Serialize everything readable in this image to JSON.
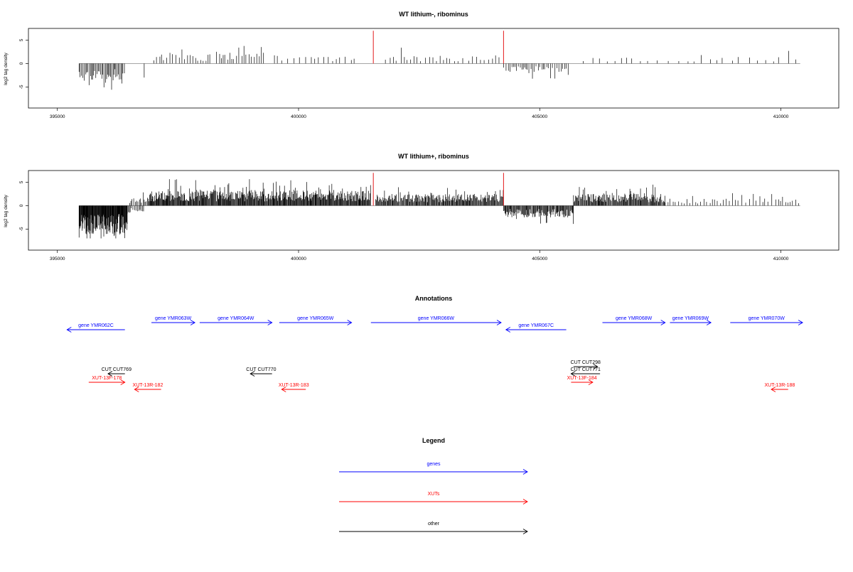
{
  "chart_data": [
    {
      "type": "bar",
      "id": "lithium-minus",
      "title": "WT lithium-, ribominus",
      "ylabel": "log2 tag density",
      "xlim": [
        394400,
        411200
      ],
      "ylim": [
        -9.5,
        7.5
      ],
      "xticks": [
        "395000",
        "400000",
        "405000",
        "410000"
      ],
      "yticks": [
        "5",
        "0",
        "-5"
      ],
      "grid": false,
      "highlight_color": "#e41a1c",
      "highlight_positions": [
        401550,
        404250
      ],
      "highlight_height": 7,
      "segments": [
        {
          "start": 395450,
          "end": 396400,
          "sign": -1,
          "base": 3.0,
          "amp": 2.8,
          "step": 25
        },
        {
          "start": 396800,
          "end": 396800,
          "sign": -1,
          "base": 3.0,
          "amp": 0,
          "step": 1
        },
        {
          "start": 397000,
          "end": 398200,
          "sign": 1,
          "base": 1.6,
          "amp": 1.6,
          "step": 55
        },
        {
          "start": 398300,
          "end": 399300,
          "sign": 1,
          "base": 2.0,
          "amp": 2.5,
          "step": 50
        },
        {
          "start": 399500,
          "end": 401200,
          "sign": 1,
          "base": 1.4,
          "amp": 1.4,
          "step": 95
        },
        {
          "start": 401800,
          "end": 404200,
          "sign": 1,
          "base": 1.4,
          "amp": 2.0,
          "step": 90
        },
        {
          "start": 404250,
          "end": 405600,
          "sign": -1,
          "base": 1.5,
          "amp": 1.7,
          "step": 38
        },
        {
          "start": 405900,
          "end": 410400,
          "sign": 1,
          "base": 1.2,
          "amp": 1.6,
          "step": 170
        }
      ]
    },
    {
      "type": "bar",
      "id": "lithium-plus",
      "title": "WT lithium+, ribominus",
      "ylabel": "log2 tag density",
      "xlim": [
        394400,
        411200
      ],
      "ylim": [
        -9.5,
        7.5
      ],
      "xticks": [
        "395000",
        "400000",
        "405000",
        "410000"
      ],
      "yticks": [
        "5",
        "0",
        "-5"
      ],
      "grid": false,
      "highlight_color": "#e41a1c",
      "highlight_positions": [
        401550,
        404250
      ],
      "highlight_height": 7,
      "segments": [
        {
          "start": 395450,
          "end": 396450,
          "sign": -1,
          "base": 5.0,
          "amp": 3.5,
          "step": 8
        },
        {
          "start": 396450,
          "end": 396800,
          "sign": -1,
          "base": 1.2,
          "amp": 1.0,
          "step": 25
        },
        {
          "start": 396500,
          "end": 396900,
          "sign": 1,
          "base": 1.5,
          "amp": 1.3,
          "step": 30
        },
        {
          "start": 396900,
          "end": 401500,
          "sign": 1,
          "base": 2.6,
          "amp": 3.0,
          "step": 12
        },
        {
          "start": 401600,
          "end": 404250,
          "sign": 1,
          "base": 2.0,
          "amp": 2.4,
          "step": 14
        },
        {
          "start": 404250,
          "end": 405700,
          "sign": -1,
          "base": 2.0,
          "amp": 1.8,
          "step": 14
        },
        {
          "start": 405700,
          "end": 407600,
          "sign": 1,
          "base": 2.0,
          "amp": 2.0,
          "step": 14
        },
        {
          "start": 407600,
          "end": 410400,
          "sign": 1,
          "base": 1.2,
          "amp": 1.6,
          "step": 60
        }
      ]
    }
  ],
  "annotations": {
    "title": "Annotations",
    "features": [
      {
        "label": "gene YMR062C",
        "color": "#0000ff",
        "dir": "left",
        "row": 1,
        "start": 395200,
        "end": 396400
      },
      {
        "label": "gene YMR063W",
        "color": "#0000ff",
        "dir": "right",
        "row": 0,
        "start": 396950,
        "end": 397850
      },
      {
        "label": "gene YMR064W",
        "color": "#0000ff",
        "dir": "right",
        "row": 0,
        "start": 397950,
        "end": 399450
      },
      {
        "label": "gene YMR065W",
        "color": "#0000ff",
        "dir": "right",
        "row": 0,
        "start": 399600,
        "end": 401100
      },
      {
        "label": "gene YMR066W",
        "color": "#0000ff",
        "dir": "right",
        "row": 0,
        "start": 401500,
        "end": 404200
      },
      {
        "label": "gene YMR067C",
        "color": "#0000ff",
        "dir": "left",
        "row": 1,
        "start": 404300,
        "end": 405550
      },
      {
        "label": "gene YMR068W",
        "color": "#0000ff",
        "dir": "right",
        "row": 0,
        "start": 406300,
        "end": 407600
      },
      {
        "label": "gene YMR069W",
        "color": "#0000ff",
        "dir": "right",
        "row": 0,
        "start": 407700,
        "end": 408550
      },
      {
        "label": "gene YMR070W",
        "color": "#0000ff",
        "dir": "right",
        "row": 0,
        "start": 408950,
        "end": 410450
      },
      {
        "label": "CUT CUT769",
        "color": "#000000",
        "dir": "left",
        "row": 3,
        "start": 396050,
        "end": 396400
      },
      {
        "label": "XUT-13F-178",
        "color": "#ff0000",
        "dir": "right",
        "row": 4,
        "start": 395650,
        "end": 396400
      },
      {
        "label": "XUT-13R-182",
        "color": "#ff0000",
        "dir": "left",
        "row": 5,
        "start": 396600,
        "end": 397150
      },
      {
        "label": "CUT CUT770",
        "color": "#000000",
        "dir": "left",
        "row": 3,
        "start": 399000,
        "end": 399450
      },
      {
        "label": "XUT-13R-183",
        "color": "#ff0000",
        "dir": "left",
        "row": 5,
        "start": 399650,
        "end": 400150
      },
      {
        "label": "CUT CUT298",
        "color": "#000000",
        "dir": "right",
        "row": 2,
        "start": 405700,
        "end": 406200
      },
      {
        "label": "CUT CUT771",
        "color": "#000000",
        "dir": "left",
        "row": 3,
        "start": 405650,
        "end": 406250
      },
      {
        "label": "XUT-13F-184",
        "color": "#ff0000",
        "dir": "right",
        "row": 4,
        "start": 405650,
        "end": 406100
      },
      {
        "label": "XUT-13R-188",
        "color": "#ff0000",
        "dir": "left",
        "row": 5,
        "start": 409800,
        "end": 410150
      }
    ]
  },
  "legend": {
    "title": "Legend",
    "items": [
      {
        "label": "genes",
        "color": "#0000ff"
      },
      {
        "label": "XUTs",
        "color": "#ff0000"
      },
      {
        "label": "other",
        "color": "#000000"
      }
    ]
  }
}
